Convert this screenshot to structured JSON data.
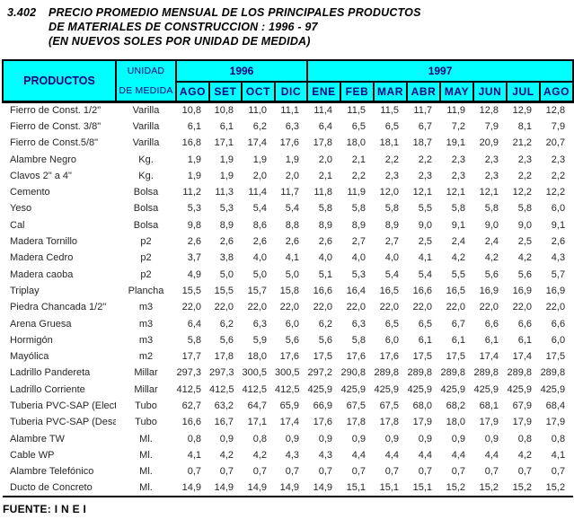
{
  "title": {
    "number": "3.402",
    "line1": "PRECIO PROMEDIO MENSUAL DE LOS PRINCIPALES PRODUCTOS",
    "line2": "DE MATERIALES DE CONSTRUCCION : 1996 - 97",
    "line3": "(EN NUEVOS SOLES POR UNIDAD DE MEDIDA)"
  },
  "table": {
    "col_products": "PRODUCTOS",
    "col_unit_line1": "UNIDAD",
    "col_unit_line2": "DE MEDIDA",
    "group_1996": {
      "label": "1996",
      "months": [
        "AGO",
        "SET",
        "OCT",
        "DIC"
      ]
    },
    "group_1997": {
      "label": "1997",
      "months": [
        "ENE",
        "FEB",
        "MAR",
        "ABR",
        "MAY",
        "JUN",
        "JUL",
        "AGO"
      ]
    },
    "rows": [
      {
        "product": "Fierro de Const. 1/2\"",
        "unit": "Varilla",
        "values": [
          "10,8",
          "10,8",
          "11,0",
          "11,1",
          "11,4",
          "11,5",
          "11,5",
          "11,7",
          "11,9",
          "12,8",
          "12,9",
          "12,8"
        ]
      },
      {
        "product": "Fierro de Const. 3/8\"",
        "unit": "Varilla",
        "values": [
          "6,1",
          "6,1",
          "6,2",
          "6,3",
          "6,4",
          "6,5",
          "6,5",
          "6,7",
          "7,2",
          "7,9",
          "8,1",
          "7,9"
        ]
      },
      {
        "product": "Fierro de Const.5/8\"",
        "unit": "Varilla",
        "values": [
          "16,8",
          "17,1",
          "17,4",
          "17,6",
          "17,8",
          "18,0",
          "18,1",
          "18,7",
          "19,1",
          "20,9",
          "21,2",
          "20,7"
        ]
      },
      {
        "product": "Alambre Negro",
        "unit": "Kg.",
        "values": [
          "1,9",
          "1,9",
          "1,9",
          "1,9",
          "2,0",
          "2,1",
          "2,2",
          "2,2",
          "2,3",
          "2,3",
          "2,3",
          "2,3"
        ]
      },
      {
        "product": "Clavos 2\" a 4\"",
        "unit": "Kg.",
        "values": [
          "1,9",
          "1,9",
          "2,0",
          "2,0",
          "2,1",
          "2,2",
          "2,3",
          "2,3",
          "2,3",
          "2,3",
          "2,2",
          "2,2"
        ]
      },
      {
        "product": "Cemento",
        "unit": "Bolsa",
        "values": [
          "11,2",
          "11,3",
          "11,4",
          "11,7",
          "11,8",
          "11,9",
          "12,0",
          "12,1",
          "12,1",
          "12,1",
          "12,2",
          "12,2"
        ]
      },
      {
        "product": "Yeso",
        "unit": "Bolsa",
        "values": [
          "5,3",
          "5,3",
          "5,4",
          "5,4",
          "5,8",
          "5,8",
          "5,8",
          "5,5",
          "5,8",
          "5,8",
          "5,8",
          "6,0"
        ]
      },
      {
        "product": "Cal",
        "unit": "Bolsa",
        "values": [
          "9,8",
          "8,9",
          "8,6",
          "8,8",
          "8,9",
          "8,9",
          "8,9",
          "9,0",
          "9,1",
          "9,0",
          "9,0",
          "9,1"
        ]
      },
      {
        "product": "Madera Tornillo",
        "unit": "p2",
        "values": [
          "2,6",
          "2,6",
          "2,6",
          "2,6",
          "2,6",
          "2,7",
          "2,7",
          "2,5",
          "2,4",
          "2,4",
          "2,5",
          "2,6"
        ]
      },
      {
        "product": "Madera Cedro",
        "unit": "p2",
        "values": [
          "3,7",
          "3,8",
          "4,0",
          "4,1",
          "4,0",
          "4,0",
          "4,0",
          "4,1",
          "4,2",
          "4,2",
          "4,2",
          "4,3"
        ]
      },
      {
        "product": "Madera caoba",
        "unit": "p2",
        "values": [
          "4,9",
          "5,0",
          "5,0",
          "5,0",
          "5,1",
          "5,3",
          "5,4",
          "5,4",
          "5,5",
          "5,6",
          "5,6",
          "5,7"
        ]
      },
      {
        "product": "Triplay",
        "unit": "Plancha",
        "values": [
          "15,5",
          "15,5",
          "15,7",
          "15,8",
          "16,6",
          "16,4",
          "16,5",
          "16,6",
          "16,5",
          "16,9",
          "16,9",
          "16,9"
        ]
      },
      {
        "product": "Piedra Chancada 1/2\"",
        "unit": "m3",
        "values": [
          "22,0",
          "22,0",
          "22,0",
          "22,0",
          "22,0",
          "22,0",
          "22,0",
          "22,0",
          "22,0",
          "22,0",
          "22,0",
          "22,0"
        ]
      },
      {
        "product": "Arena Gruesa",
        "unit": "m3",
        "values": [
          "6,4",
          "6,2",
          "6,3",
          "6,0",
          "6,2",
          "6,3",
          "6,5",
          "6,5",
          "6,7",
          "6,6",
          "6,6",
          "6,6"
        ]
      },
      {
        "product": "Hormigón",
        "unit": "m3",
        "values": [
          "5,8",
          "5,6",
          "5,9",
          "5,6",
          "5,6",
          "5,8",
          "6,0",
          "6,1",
          "6,1",
          "6,1",
          "6,1",
          "6,0"
        ]
      },
      {
        "product": "Mayólica",
        "unit": "m2",
        "values": [
          "17,7",
          "17,8",
          "18,0",
          "17,6",
          "17,5",
          "17,6",
          "17,6",
          "17,5",
          "17,5",
          "17,4",
          "17,4",
          "17,5"
        ]
      },
      {
        "product": "Ladrillo Pandereta",
        "unit": "Millar",
        "values": [
          "297,3",
          "297,3",
          "300,5",
          "300,5",
          "297,2",
          "290,8",
          "289,8",
          "289,8",
          "289,8",
          "289,8",
          "289,8",
          "289,8"
        ]
      },
      {
        "product": "Ladrillo Corriente",
        "unit": "Millar",
        "values": [
          "412,5",
          "412,5",
          "412,5",
          "412,5",
          "425,9",
          "425,9",
          "425,9",
          "425,9",
          "425,9",
          "425,9",
          "425,9",
          "425,9"
        ]
      },
      {
        "product": "Tuberia PVC-SAP (Electr.)",
        "unit": "Tubo",
        "values": [
          "62,7",
          "63,2",
          "64,7",
          "65,9",
          "66,9",
          "67,5",
          "67,5",
          "68,0",
          "68,2",
          "68,1",
          "67,9",
          "68,4"
        ]
      },
      {
        "product": "Tuberia PVC-SAP (Desag.)",
        "unit": "Tubo",
        "values": [
          "16,6",
          "16,7",
          "17,1",
          "17,4",
          "17,6",
          "17,8",
          "17,8",
          "17,9",
          "18,0",
          "17,9",
          "17,9",
          "17,9"
        ]
      },
      {
        "product": "Alambre TW",
        "unit": "Ml.",
        "values": [
          "0,8",
          "0,9",
          "0,8",
          "0,9",
          "0,9",
          "0,9",
          "0,9",
          "0,9",
          "0,9",
          "0,9",
          "0,8",
          "0,8"
        ]
      },
      {
        "product": "Cable WP",
        "unit": "Ml.",
        "values": [
          "4,1",
          "4,2",
          "4,2",
          "4,3",
          "4,3",
          "4,4",
          "4,4",
          "4,4",
          "4,4",
          "4,4",
          "4,2",
          "4,1"
        ]
      },
      {
        "product": "Alambre Telefónico",
        "unit": "Ml.",
        "values": [
          "0,7",
          "0,7",
          "0,7",
          "0,7",
          "0,7",
          "0,7",
          "0,7",
          "0,7",
          "0,7",
          "0,7",
          "0,7",
          "0,7"
        ]
      },
      {
        "product": "Ducto de Concreto",
        "unit": "Ml.",
        "values": [
          "14,9",
          "14,9",
          "14,9",
          "14,9",
          "14,9",
          "15,1",
          "15,1",
          "15,1",
          "15,2",
          "15,2",
          "15,2",
          "15,2"
        ]
      }
    ]
  },
  "footer": {
    "source": "FUENTE: I N E I"
  },
  "colors": {
    "header_bg": "#00ffff",
    "header_text": "#000080",
    "border": "#000000",
    "body_text": "#262626"
  }
}
